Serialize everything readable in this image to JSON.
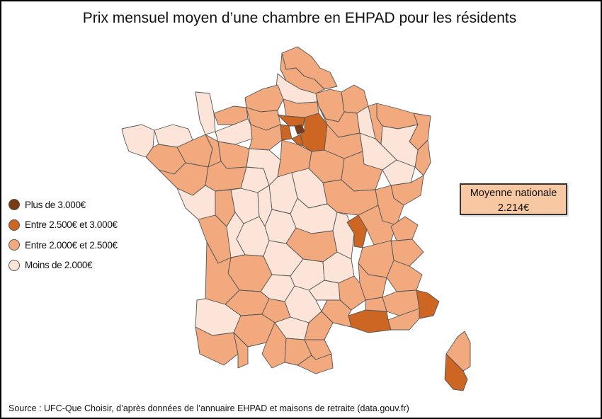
{
  "title": "Prix mensuel moyen d’une chambre en EHPAD pour les résidents",
  "legend": [
    {
      "label": "Plus de 3.000€",
      "color": "#7a3a12"
    },
    {
      "label": "Entre 2.500€ et 3.000€",
      "color": "#cc6622"
    },
    {
      "label": "Entre 2.000€ et 2.500€",
      "color": "#f2a97e"
    },
    {
      "label": "Moins de 2.000€",
      "color": "#fce5d8"
    }
  ],
  "average_box": {
    "label": "Moyenne nationale",
    "value": "2.214€"
  },
  "source": "Source : UFC-Que Choisir, d’après données de l’annuaire EHPAD et maisons de retraite (data.gouv.fr)",
  "colors": {
    "over_3000": "#7a3a12",
    "between_2500_3000": "#cc6622",
    "between_2000_2500": "#f2a97e",
    "under_2000": "#fce5d8",
    "average_box_fill": "#f8c8a3",
    "border": "#555555"
  }
}
